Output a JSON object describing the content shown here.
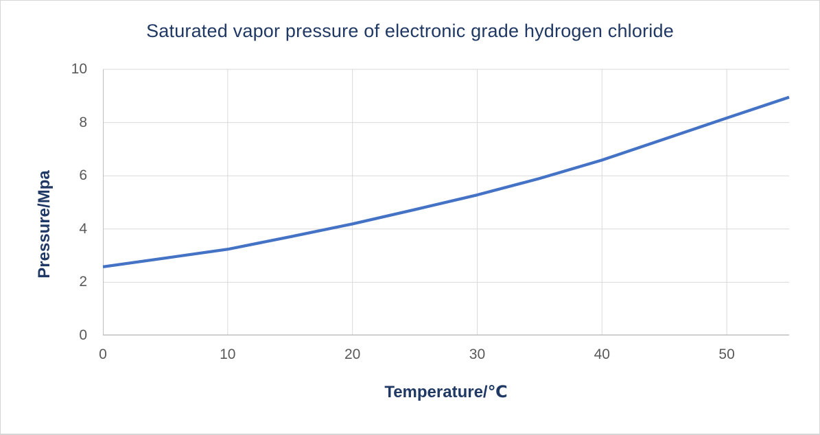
{
  "chart_data": {
    "type": "line",
    "title": "Saturated vapor pressure of electronic grade hydrogen chloride",
    "xlabel": "Temperature/℃",
    "ylabel": "Pressure/Mpa",
    "x": [
      0,
      5,
      10,
      15,
      20,
      25,
      30,
      35,
      40,
      45,
      50,
      55
    ],
    "y": [
      2.58,
      2.91,
      3.24,
      3.71,
      4.19,
      4.73,
      5.28,
      5.9,
      6.59,
      7.38,
      8.17,
      8.95
    ],
    "xlim": [
      0,
      55
    ],
    "ylim": [
      0,
      10
    ],
    "x_ticks": [
      0,
      10,
      20,
      30,
      40,
      50
    ],
    "y_ticks": [
      0,
      2,
      4,
      6,
      8,
      10
    ],
    "grid": true,
    "legend": false,
    "colors": {
      "line": "#4472C4",
      "title": "#1F3864",
      "axis_title": "#1F3864",
      "tick_label": "#595959",
      "gridline": "#D9D9D9",
      "axis_line": "#BFBFBF",
      "background": "#FFFFFF",
      "frame_border": "#D6D6D6"
    }
  }
}
